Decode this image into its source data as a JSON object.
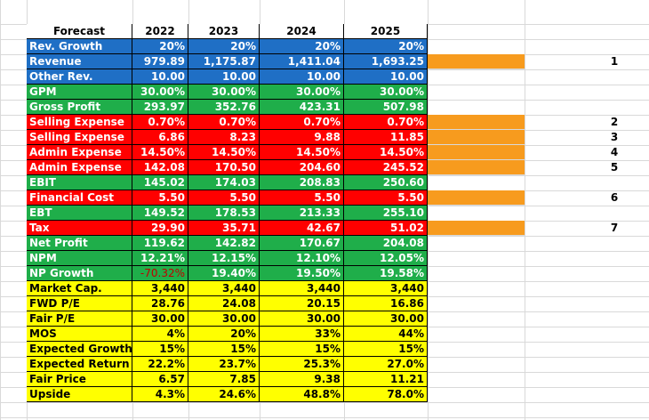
{
  "header": [
    "Forecast",
    "2022",
    "2023",
    "2024",
    "2025"
  ],
  "rows": [
    {
      "label": "Rev. Growth",
      "theme": "blue",
      "values": [
        "20%",
        "20%",
        "20%",
        "20%"
      ],
      "neg": [
        false,
        false,
        false,
        false
      ]
    },
    {
      "label": "Revenue",
      "theme": "blue",
      "values": [
        "979.89",
        "1,175.87",
        "1,411.04",
        "1,693.25"
      ],
      "neg": [
        false,
        false,
        false,
        false
      ]
    },
    {
      "label": "Other Rev.",
      "theme": "blue",
      "values": [
        "10.00",
        "10.00",
        "10.00",
        "10.00"
      ],
      "neg": [
        false,
        false,
        false,
        false
      ]
    },
    {
      "label": "GPM",
      "theme": "green",
      "values": [
        "30.00%",
        "30.00%",
        "30.00%",
        "30.00%"
      ],
      "neg": [
        false,
        false,
        false,
        false
      ]
    },
    {
      "label": "Gross Profit",
      "theme": "green",
      "values": [
        "293.97",
        "352.76",
        "423.31",
        "507.98"
      ],
      "neg": [
        false,
        false,
        false,
        false
      ]
    },
    {
      "label": "Selling Expense",
      "theme": "red",
      "values": [
        "0.70%",
        "0.70%",
        "0.70%",
        "0.70%"
      ],
      "neg": [
        false,
        false,
        false,
        false
      ]
    },
    {
      "label": "Selling Expense",
      "theme": "red",
      "values": [
        "6.86",
        "8.23",
        "9.88",
        "11.85"
      ],
      "neg": [
        false,
        false,
        false,
        false
      ]
    },
    {
      "label": "Admin Expense",
      "theme": "red",
      "values": [
        "14.50%",
        "14.50%",
        "14.50%",
        "14.50%"
      ],
      "neg": [
        false,
        false,
        false,
        false
      ]
    },
    {
      "label": "Admin Expense",
      "theme": "red",
      "values": [
        "142.08",
        "170.50",
        "204.60",
        "245.52"
      ],
      "neg": [
        false,
        false,
        false,
        false
      ]
    },
    {
      "label": "EBIT",
      "theme": "green",
      "values": [
        "145.02",
        "174.03",
        "208.83",
        "250.60"
      ],
      "neg": [
        false,
        false,
        false,
        false
      ]
    },
    {
      "label": "Financial Cost",
      "theme": "red",
      "values": [
        "5.50",
        "5.50",
        "5.50",
        "5.50"
      ],
      "neg": [
        false,
        false,
        false,
        false
      ]
    },
    {
      "label": "EBT",
      "theme": "green",
      "values": [
        "149.52",
        "178.53",
        "213.33",
        "255.10"
      ],
      "neg": [
        false,
        false,
        false,
        false
      ]
    },
    {
      "label": "Tax",
      "theme": "red",
      "values": [
        "29.90",
        "35.71",
        "42.67",
        "51.02"
      ],
      "neg": [
        false,
        false,
        false,
        false
      ]
    },
    {
      "label": "Net Profit",
      "theme": "green",
      "values": [
        "119.62",
        "142.82",
        "170.67",
        "204.08"
      ],
      "neg": [
        false,
        false,
        false,
        false
      ]
    },
    {
      "label": "NPM",
      "theme": "green",
      "values": [
        "12.21%",
        "12.15%",
        "12.10%",
        "12.05%"
      ],
      "neg": [
        false,
        false,
        false,
        false
      ]
    },
    {
      "label": "NP Growth",
      "theme": "green",
      "values": [
        "-70.32%",
        "19.40%",
        "19.50%",
        "19.58%"
      ],
      "neg": [
        true,
        false,
        false,
        false
      ]
    },
    {
      "label": "Market Cap.",
      "theme": "yellow",
      "values": [
        "3,440",
        "3,440",
        "3,440",
        "3,440"
      ],
      "neg": [
        false,
        false,
        false,
        false
      ]
    },
    {
      "label": "FWD P/E",
      "theme": "yellow",
      "values": [
        "28.76",
        "24.08",
        "20.15",
        "16.86"
      ],
      "neg": [
        false,
        false,
        false,
        false
      ]
    },
    {
      "label": "Fair P/E",
      "theme": "yellow",
      "values": [
        "30.00",
        "30.00",
        "30.00",
        "30.00"
      ],
      "neg": [
        false,
        false,
        false,
        false
      ]
    },
    {
      "label": "MOS",
      "theme": "yellow",
      "values": [
        "4%",
        "20%",
        "33%",
        "44%"
      ],
      "neg": [
        false,
        false,
        false,
        false
      ]
    },
    {
      "label": "Expected Growth",
      "theme": "yellow",
      "values": [
        "15%",
        "15%",
        "15%",
        "15%"
      ],
      "neg": [
        false,
        false,
        false,
        false
      ]
    },
    {
      "label": "Expected Return",
      "theme": "yellow",
      "values": [
        "22.2%",
        "23.7%",
        "25.3%",
        "27.0%"
      ],
      "neg": [
        false,
        false,
        false,
        false
      ]
    },
    {
      "label": "Fair Price",
      "theme": "yellow",
      "values": [
        "6.57",
        "7.85",
        "9.38",
        "11.21"
      ],
      "neg": [
        false,
        false,
        false,
        false
      ]
    },
    {
      "label": "Upside",
      "theme": "yellow",
      "values": [
        "4.3%",
        "24.6%",
        "48.8%",
        "78.0%"
      ],
      "neg": [
        false,
        false,
        false,
        false
      ]
    }
  ],
  "markers": [
    {
      "row": 1,
      "label": "1"
    },
    {
      "row": 5,
      "label": "2"
    },
    {
      "row": 6,
      "label": "3"
    },
    {
      "row": 7,
      "label": "4"
    },
    {
      "row": 8,
      "label": "5"
    },
    {
      "row": 10,
      "label": "6"
    },
    {
      "row": 12,
      "label": "7"
    }
  ],
  "colors": {
    "blue": "#1f6fc5",
    "green": "#1fae4a",
    "red": "#ff0000",
    "yellow": "#ffff00",
    "orange": "#f79b1e",
    "negative_text": "#c00000"
  }
}
